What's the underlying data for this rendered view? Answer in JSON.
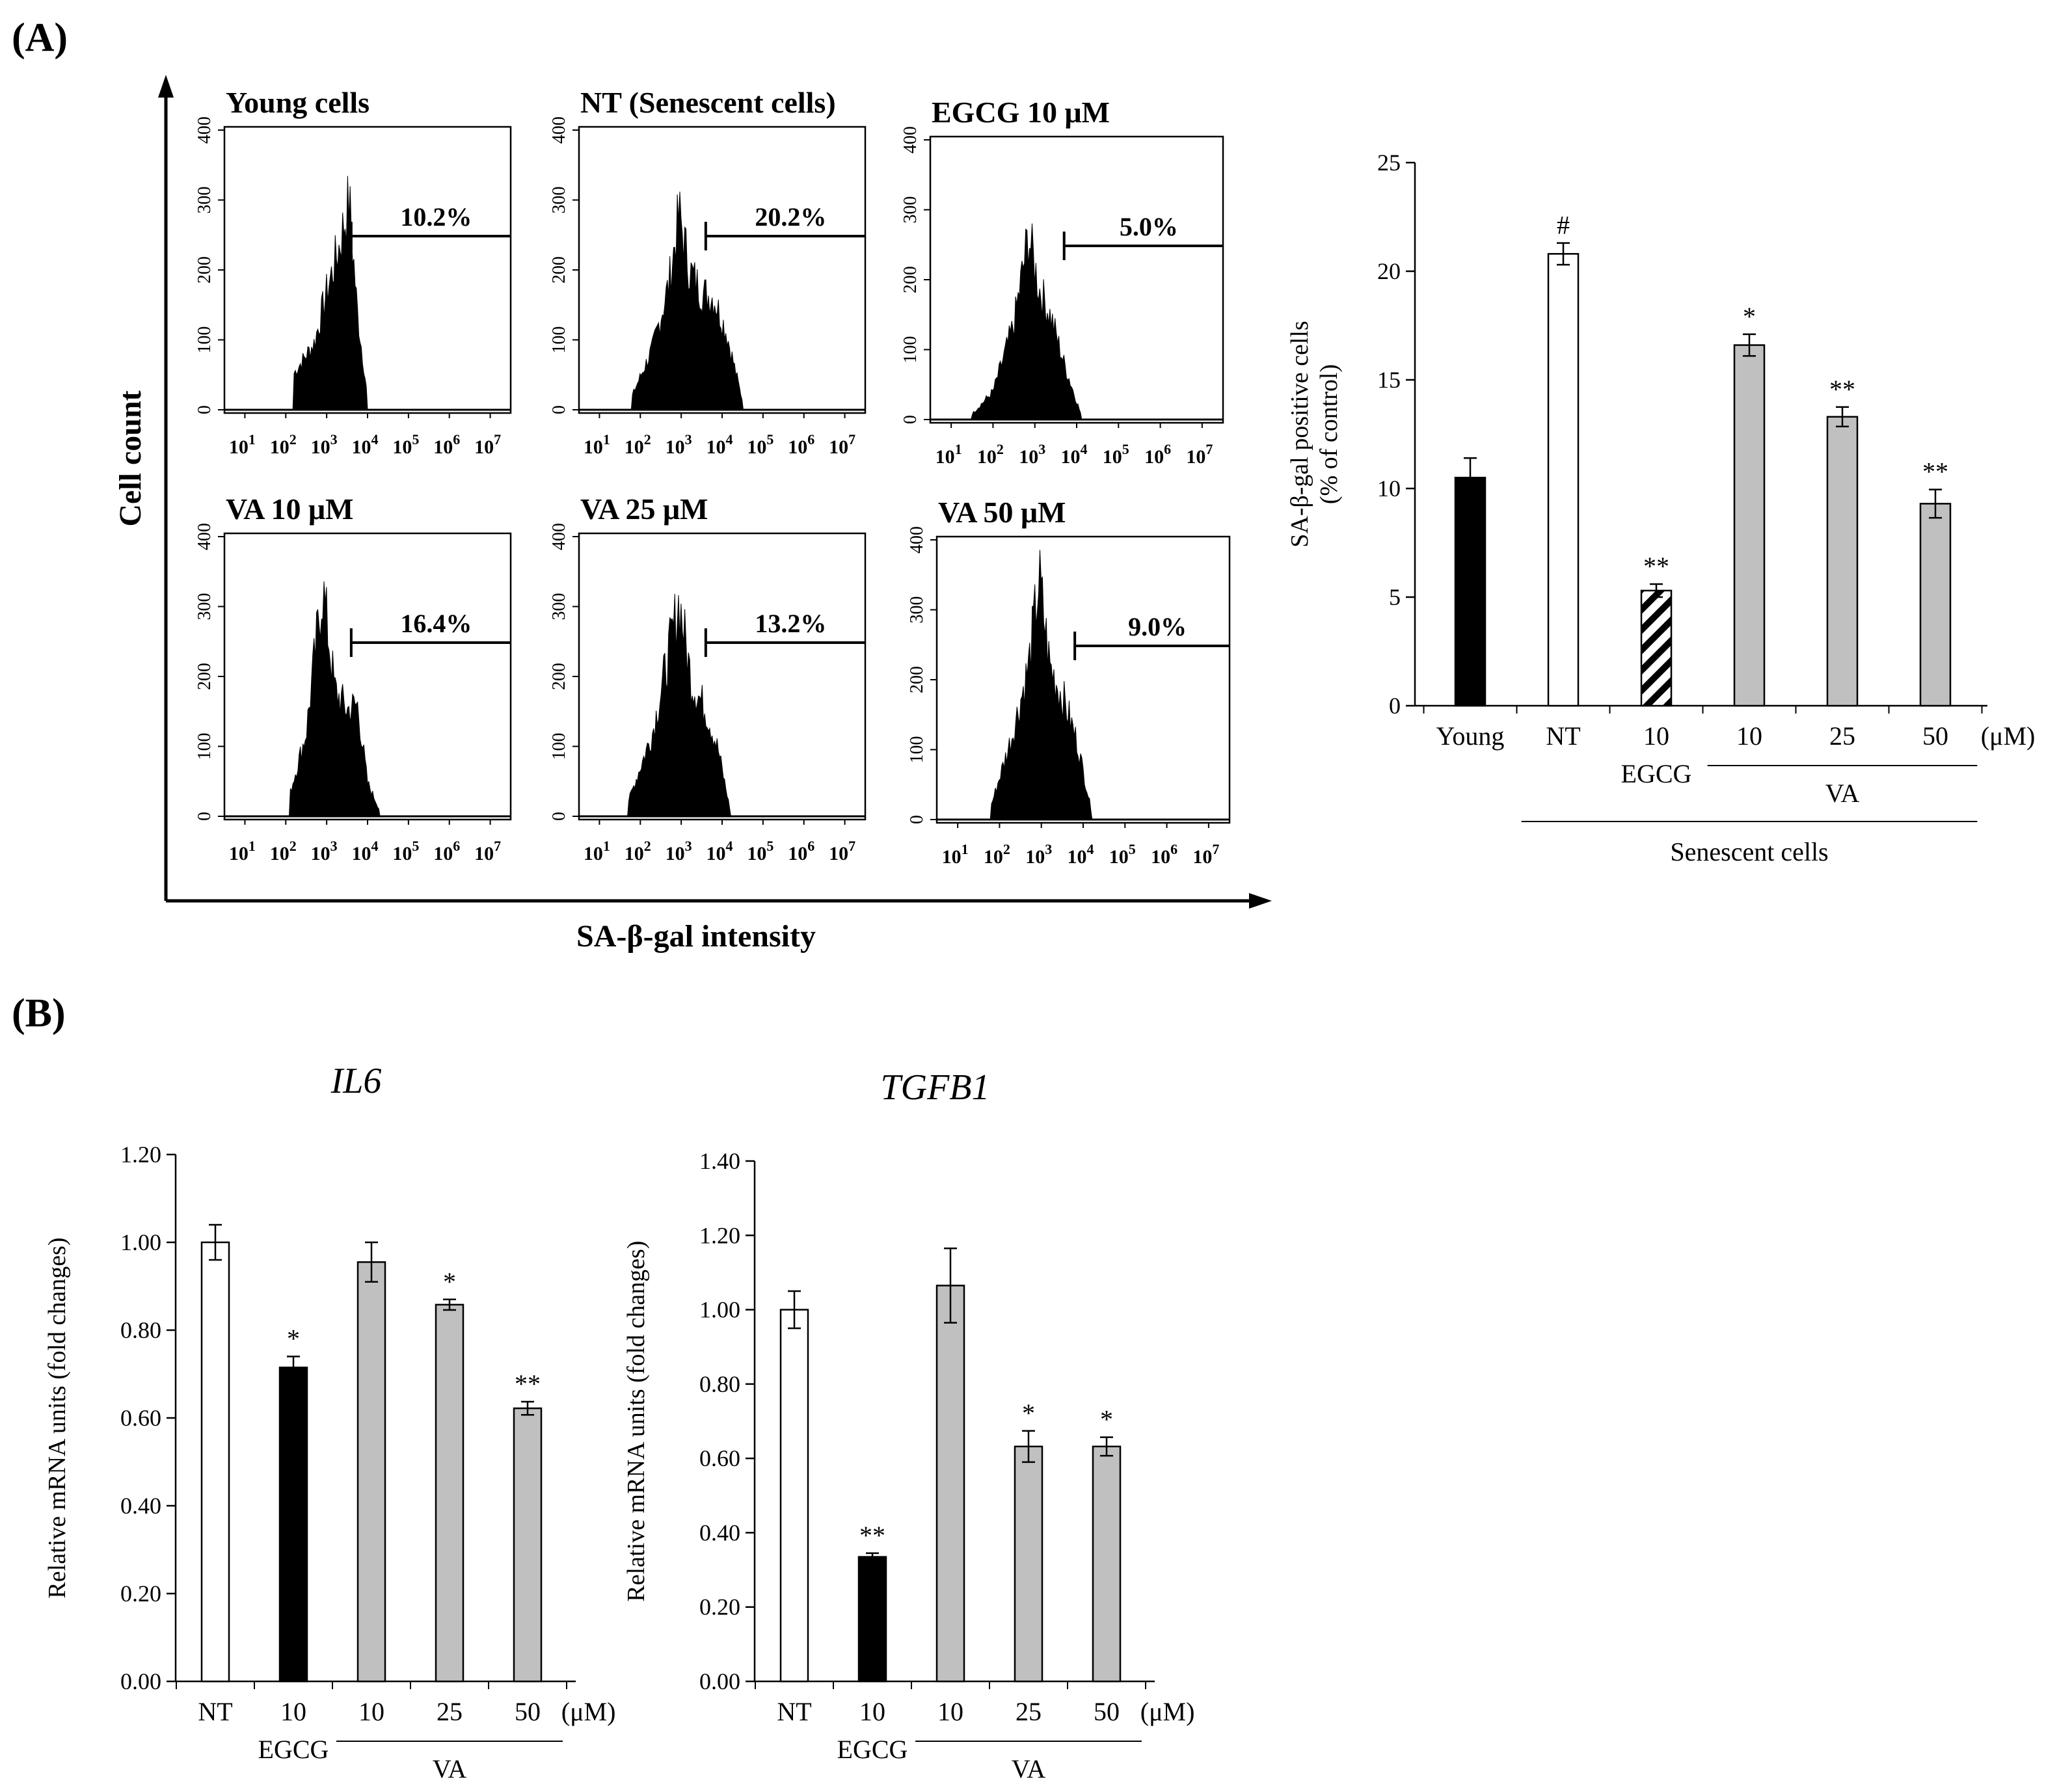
{
  "panels": {
    "a_label": "(A)",
    "b_label": "(B)"
  },
  "facs": {
    "x_axis_label": "SA-β-gal intensity",
    "y_axis_label": "Cell count",
    "y_ticks": [
      "0",
      "100",
      "200",
      "300",
      "400"
    ],
    "x_tick_exponents": [
      "1",
      "2",
      "3",
      "4",
      "5",
      "6",
      "7"
    ],
    "x_tick_base": "10",
    "plots": [
      {
        "title": "Young cells",
        "gate": "10.2%",
        "peak_decade": 3.6,
        "shape": "young"
      },
      {
        "title": "NT (Senescent cells)",
        "gate": "20.2%",
        "peak_decade": 2.9,
        "shape": "nt"
      },
      {
        "title": "EGCG 10 μM",
        "gate": "5.0%",
        "peak_decade": 2.9,
        "shape": "egcg"
      },
      {
        "title": "VA 10 μM",
        "gate": "16.4%",
        "peak_decade": 2.9,
        "shape": "va10"
      },
      {
        "title": "VA 25 μM",
        "gate": "13.2%",
        "peak_decade": 2.9,
        "shape": "va25"
      },
      {
        "title": "VA 50 μM",
        "gate": "9.0%",
        "peak_decade": 2.9,
        "shape": "va50"
      }
    ]
  },
  "chart_data": [
    {
      "id": "sa_beta_gal",
      "type": "bar",
      "title": "",
      "ylabel_line1": "SA-β-gal positive cells",
      "ylabel_line2": "(% of control)",
      "ylim": [
        0,
        25
      ],
      "yticks": [
        "0",
        "5",
        "10",
        "15",
        "20",
        "25"
      ],
      "categories": [
        "Young",
        "NT",
        "10",
        "10",
        "25",
        "50"
      ],
      "values": [
        10.5,
        20.8,
        5.3,
        16.6,
        13.3,
        9.3
      ],
      "errors": [
        0.9,
        0.5,
        0.3,
        0.5,
        0.45,
        0.65
      ],
      "fills": [
        "black",
        "white",
        "hatch",
        "gray",
        "gray",
        "gray"
      ],
      "significance": [
        "",
        "#",
        "**",
        "*",
        "**",
        "**"
      ],
      "unit": "(μM)",
      "group_egcg": "EGCG",
      "group_va": "VA",
      "group_senescent": "Senescent cells"
    },
    {
      "id": "il6",
      "type": "bar",
      "title": "IL6",
      "ylabel": "Relative mRNA units (fold changes)",
      "ylim": [
        0,
        1.2
      ],
      "yticks": [
        "0.00",
        "0.20",
        "0.40",
        "0.60",
        "0.80",
        "1.00",
        "1.20"
      ],
      "categories": [
        "NT",
        "10",
        "10",
        "25",
        "50"
      ],
      "values": [
        1.0,
        0.715,
        0.955,
        0.858,
        0.622
      ],
      "errors": [
        0.04,
        0.025,
        0.045,
        0.012,
        0.015
      ],
      "fills": [
        "white",
        "black",
        "gray",
        "gray",
        "gray"
      ],
      "significance": [
        "",
        "*",
        "",
        "*",
        "**"
      ],
      "unit": "(μM)",
      "group_egcg": "EGCG",
      "group_va": "VA"
    },
    {
      "id": "tgfb1",
      "type": "bar",
      "title": "TGFB1",
      "ylabel": "Relative mRNA units (fold changes)",
      "ylim": [
        0,
        1.4
      ],
      "yticks": [
        "0.00",
        "0.20",
        "0.40",
        "0.60",
        "0.80",
        "1.00",
        "1.20",
        "1.40"
      ],
      "categories": [
        "NT",
        "10",
        "10",
        "25",
        "50"
      ],
      "values": [
        1.0,
        0.335,
        1.065,
        0.632,
        0.632
      ],
      "errors": [
        0.05,
        0.01,
        0.1,
        0.042,
        0.025
      ],
      "fills": [
        "white",
        "black",
        "gray",
        "gray",
        "gray"
      ],
      "significance": [
        "",
        "**",
        "",
        "*",
        "*"
      ],
      "unit": "(μM)",
      "group_egcg": "EGCG",
      "group_va": "VA"
    }
  ]
}
